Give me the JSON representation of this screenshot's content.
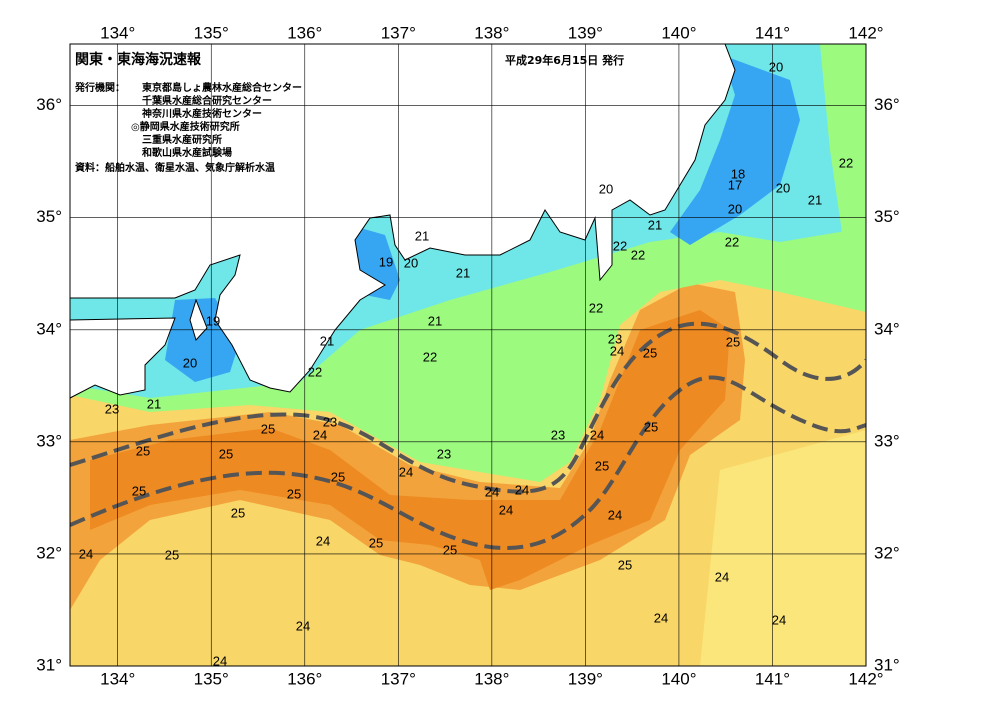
{
  "header": {
    "title": "関東・東海海況速報",
    "date": "平成29年6月15日 発行",
    "issuer_label": "発行機関：",
    "issuers": [
      "東京都島しょ農林水産総合センター",
      "千葉県水産総合研究センター",
      "神奈川県水産技術センター",
      "◎静岡県水産技術研究所",
      "三重県水産研究所",
      "和歌山県水産試験場"
    ],
    "sources": "資料：船舶水温、衛星水温、気象庁解析水温"
  },
  "map": {
    "lonlim": [
      133.49,
      142
    ],
    "latlim": [
      31,
      36.55
    ],
    "lon_ticks": [
      {
        "value": 134,
        "label": "134°"
      },
      {
        "value": 135,
        "label": "135°"
      },
      {
        "value": 136,
        "label": "136°"
      },
      {
        "value": 137,
        "label": "137°"
      },
      {
        "value": 138,
        "label": "138°"
      },
      {
        "value": 139,
        "label": "139°"
      },
      {
        "value": 140,
        "label": "140°"
      },
      {
        "value": 141,
        "label": "141°"
      },
      {
        "value": 142,
        "label": "142°"
      }
    ],
    "lat_ticks": [
      {
        "value": 31,
        "label": "31°"
      },
      {
        "value": 32,
        "label": "32°"
      },
      {
        "value": 33,
        "label": "33°"
      },
      {
        "value": 34,
        "label": "34°"
      },
      {
        "value": 35,
        "label": "35°"
      },
      {
        "value": 36,
        "label": "36°"
      }
    ],
    "isotherm_labels": [
      20,
      18,
      17,
      20,
      21,
      22,
      20,
      21,
      22,
      20,
      22,
      22,
      21,
      19,
      20,
      21,
      22,
      21,
      19,
      21,
      22,
      20,
      22,
      21,
      23,
      23,
      24,
      25,
      25,
      23,
      25,
      24,
      25,
      25,
      23,
      23,
      24,
      25,
      24,
      25,
      25,
      25,
      25,
      24,
      24,
      25,
      25,
      24,
      25,
      24,
      25,
      25,
      24,
      24,
      24,
      24,
      24,
      24,
      24
    ]
  }
}
